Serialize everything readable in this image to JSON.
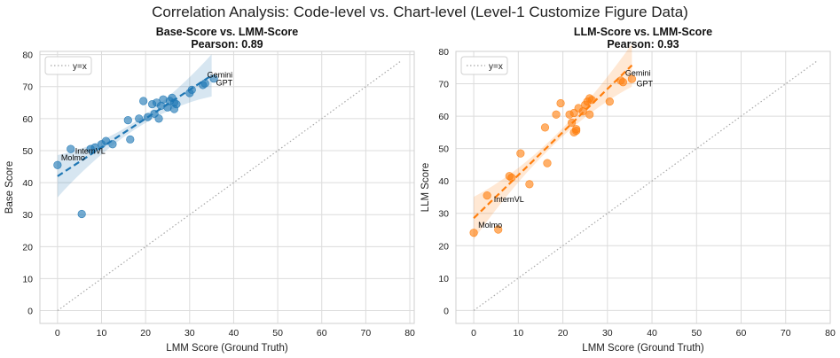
{
  "suptitle": "Correlation Analysis: Code-level vs. Chart-level (Level-1 Customize Figure Data)",
  "chart_data": [
    {
      "type": "scatter",
      "title": "Base-Score vs. LMM-Score",
      "subtitle": "Pearson: 0.89",
      "xlabel": "LMM Score (Ground Truth)",
      "ylabel": "Base Score",
      "xlim": [
        -4,
        81
      ],
      "ylim": [
        -4,
        81
      ],
      "xticks": [
        0,
        10,
        20,
        30,
        40,
        50,
        60,
        70,
        80
      ],
      "yticks": [
        0,
        10,
        20,
        30,
        40,
        50,
        60,
        70,
        80
      ],
      "grid": true,
      "color": "#1f77b4",
      "legend": {
        "label": "y=x",
        "position": "top-left"
      },
      "identity_line": [
        0,
        78
      ],
      "fit": {
        "intercept": 42,
        "slope": 0.9,
        "x_range": [
          0,
          35
        ]
      },
      "points": [
        [
          0,
          45.5
        ],
        [
          3,
          50.5
        ],
        [
          5.5,
          30.2
        ],
        [
          7.5,
          50.5
        ],
        [
          8.5,
          51
        ],
        [
          10,
          52
        ],
        [
          11,
          53
        ],
        [
          12.5,
          52
        ],
        [
          16,
          59.5
        ],
        [
          16.5,
          53.5
        ],
        [
          18.5,
          60
        ],
        [
          19.5,
          65.5
        ],
        [
          20.5,
          60.5
        ],
        [
          21.5,
          64.5
        ],
        [
          22,
          61.5
        ],
        [
          22.5,
          65
        ],
        [
          23,
          60
        ],
        [
          23.5,
          64
        ],
        [
          24,
          66
        ],
        [
          25,
          63.5
        ],
        [
          25.5,
          65.5
        ],
        [
          26,
          66.5
        ],
        [
          26.5,
          65
        ],
        [
          26.5,
          63
        ],
        [
          27,
          64.5
        ],
        [
          30,
          68
        ],
        [
          30.5,
          69
        ],
        [
          33,
          70.5
        ],
        [
          33.5,
          71
        ],
        [
          35.5,
          72.5
        ]
      ],
      "annotations": [
        {
          "text": "Gemini",
          "x": 34,
          "y": 72.8
        },
        {
          "text": "GPT",
          "x": 36,
          "y": 70.3
        },
        {
          "text": "InternVL",
          "x": 4,
          "y": 49
        },
        {
          "text": "Molmo",
          "x": 0.8,
          "y": 47
        }
      ]
    },
    {
      "type": "scatter",
      "title": "LLM-Score vs. LMM-Score",
      "subtitle": "Pearson: 0.93",
      "xlabel": "LMM Score (Ground Truth)",
      "ylabel": "LLM Score",
      "xlim": [
        -4,
        80
      ],
      "ylim": [
        -4,
        80
      ],
      "xticks": [
        0,
        10,
        20,
        30,
        40,
        50,
        60,
        70,
        80
      ],
      "yticks": [
        0,
        10,
        20,
        30,
        40,
        50,
        60,
        70,
        80
      ],
      "grid": true,
      "color": "#ff7f0e",
      "legend": {
        "label": "y=x",
        "position": "top-left"
      },
      "identity_line": [
        0,
        77
      ],
      "fit": {
        "intercept": 28.5,
        "slope": 1.33,
        "x_range": [
          0,
          35.5
        ]
      },
      "points": [
        [
          0,
          24
        ],
        [
          3,
          35.5
        ],
        [
          5.5,
          25
        ],
        [
          8,
          41.5
        ],
        [
          8.5,
          41
        ],
        [
          10.5,
          48.5
        ],
        [
          12.5,
          39
        ],
        [
          16,
          56.5
        ],
        [
          16.5,
          45.5
        ],
        [
          18.5,
          60.5
        ],
        [
          19.5,
          64
        ],
        [
          21.5,
          60.5
        ],
        [
          22,
          58
        ],
        [
          22.5,
          61
        ],
        [
          22.5,
          55
        ],
        [
          23,
          55.5
        ],
        [
          23,
          56
        ],
        [
          23.5,
          62.5
        ],
        [
          24.5,
          61.5
        ],
        [
          25,
          63.5
        ],
        [
          25.5,
          64.5
        ],
        [
          26,
          65.5
        ],
        [
          26,
          60.5
        ],
        [
          26.5,
          65
        ],
        [
          30.5,
          64.5
        ],
        [
          33,
          71
        ],
        [
          33.5,
          70.5
        ],
        [
          35.5,
          71.5
        ]
      ],
      "annotations": [
        {
          "text": "Gemini",
          "x": 34,
          "y": 72.5
        },
        {
          "text": "GPT",
          "x": 36.5,
          "y": 69.2
        },
        {
          "text": "InternVL",
          "x": 4.5,
          "y": 33.5
        },
        {
          "text": "Molmo",
          "x": 1,
          "y": 25.5
        }
      ]
    }
  ]
}
